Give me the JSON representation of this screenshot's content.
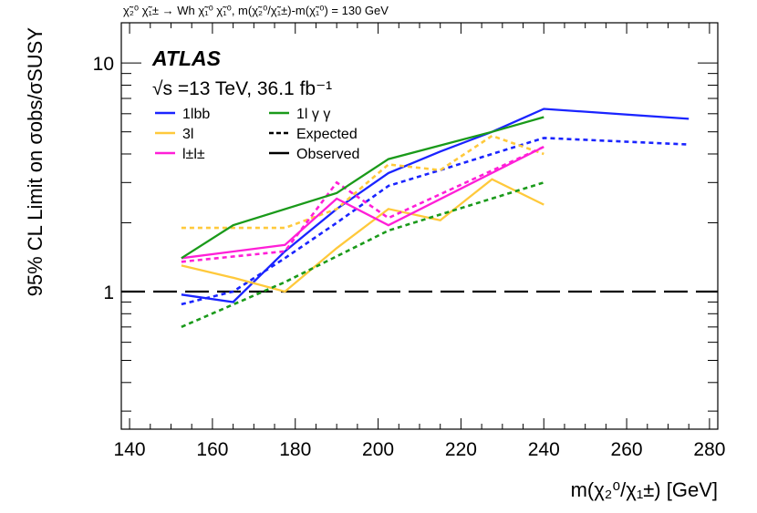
{
  "chart_data": {
    "type": "line",
    "top_caption": "χ̃₂⁰ χ̃₁± → Wh χ̃₁⁰ χ̃₁⁰, m(χ̃₂⁰/χ̃₁±)-m(χ̃₁⁰) = 130 GeV",
    "experiment": "ATLAS",
    "energy_label": "√s =13 TeV, 36.1 fb⁻¹",
    "xlabel": "m(χ₂⁰/χ₁±) [GeV]",
    "ylabel": "95% CL Limit on σobs/σSUSY",
    "xlim": [
      138,
      282
    ],
    "ylim": [
      0.25,
      15
    ],
    "yscale": "log",
    "x_ticks": [
      140,
      160,
      180,
      200,
      220,
      240,
      260,
      280
    ],
    "y_ticks": [
      {
        "value": 1,
        "label": "1"
      },
      {
        "value": 10,
        "label": "10"
      }
    ],
    "reference_line": {
      "value": 1,
      "style": "long-dash",
      "color": "#000000"
    },
    "series": [
      {
        "name": "1lbb observed",
        "group": "1lbb",
        "kind": "observed",
        "color": "#1a24ff",
        "x": [
          152.5,
          165,
          177.5,
          190,
          202.5,
          215,
          227.5,
          240,
          275
        ],
        "y": [
          0.97,
          0.9,
          1.5,
          2.3,
          3.3,
          4.1,
          5.0,
          6.3,
          5.7
        ]
      },
      {
        "name": "1lbb expected",
        "group": "1lbb",
        "kind": "expected",
        "color": "#1a24ff",
        "x": [
          152.5,
          165,
          177.5,
          190,
          202.5,
          215,
          227.5,
          240,
          275
        ],
        "y": [
          0.88,
          1.0,
          1.4,
          2.0,
          2.9,
          3.4,
          4.0,
          4.7,
          4.4
        ]
      },
      {
        "name": "3l observed",
        "group": "3l",
        "kind": "observed",
        "color": "#ffc93b",
        "x": [
          152.5,
          165,
          177.5,
          190,
          202.5,
          215,
          227.5,
          240
        ],
        "y": [
          1.3,
          1.15,
          1.0,
          1.55,
          2.3,
          2.05,
          3.1,
          2.4
        ]
      },
      {
        "name": "3l expected",
        "group": "3l",
        "kind": "expected",
        "color": "#ffc93b",
        "x": [
          152.5,
          165,
          177.5,
          190,
          202.5,
          215,
          227.5,
          240
        ],
        "y": [
          1.9,
          1.9,
          1.9,
          2.3,
          3.6,
          3.4,
          4.8,
          4.0
        ]
      },
      {
        "name": "l±l± observed",
        "group": "l±l±",
        "kind": "observed",
        "color": "#ff1fd7",
        "x": [
          152.5,
          177.5,
          190,
          202.5,
          240
        ],
        "y": [
          1.4,
          1.6,
          2.55,
          1.95,
          4.3
        ]
      },
      {
        "name": "l±l± expected",
        "group": "l±l±",
        "kind": "expected",
        "color": "#ff1fd7",
        "x": [
          152.5,
          177.5,
          190,
          202.5,
          240
        ],
        "y": [
          1.35,
          1.5,
          3.0,
          2.1,
          4.3
        ]
      },
      {
        "name": "1lγγ observed",
        "group": "1lγγ",
        "kind": "observed",
        "color": "#1a9a1a",
        "x": [
          152.5,
          165,
          190,
          202.5,
          227.5,
          240
        ],
        "y": [
          1.4,
          1.95,
          2.7,
          3.8,
          5.0,
          5.8
        ]
      },
      {
        "name": "1lγγ expected",
        "group": "1lγγ",
        "kind": "expected",
        "color": "#1a9a1a",
        "x": [
          152.5,
          177.5,
          202.5,
          240
        ],
        "y": [
          0.7,
          1.1,
          1.85,
          3.0
        ]
      }
    ],
    "legend": {
      "position": "top-left",
      "entries": [
        {
          "label": "1lbb",
          "color": "#1a24ff",
          "style": "solid"
        },
        {
          "label": "3l",
          "color": "#ffc93b",
          "style": "solid"
        },
        {
          "label": "l±l±",
          "color": "#ff1fd7",
          "style": "solid"
        },
        {
          "label": "1l γ γ",
          "color": "#1a9a1a",
          "style": "solid"
        },
        {
          "label": "Expected",
          "color": "#000000",
          "style": "dotted"
        },
        {
          "label": "Observed",
          "color": "#000000",
          "style": "long-dash"
        }
      ]
    }
  }
}
